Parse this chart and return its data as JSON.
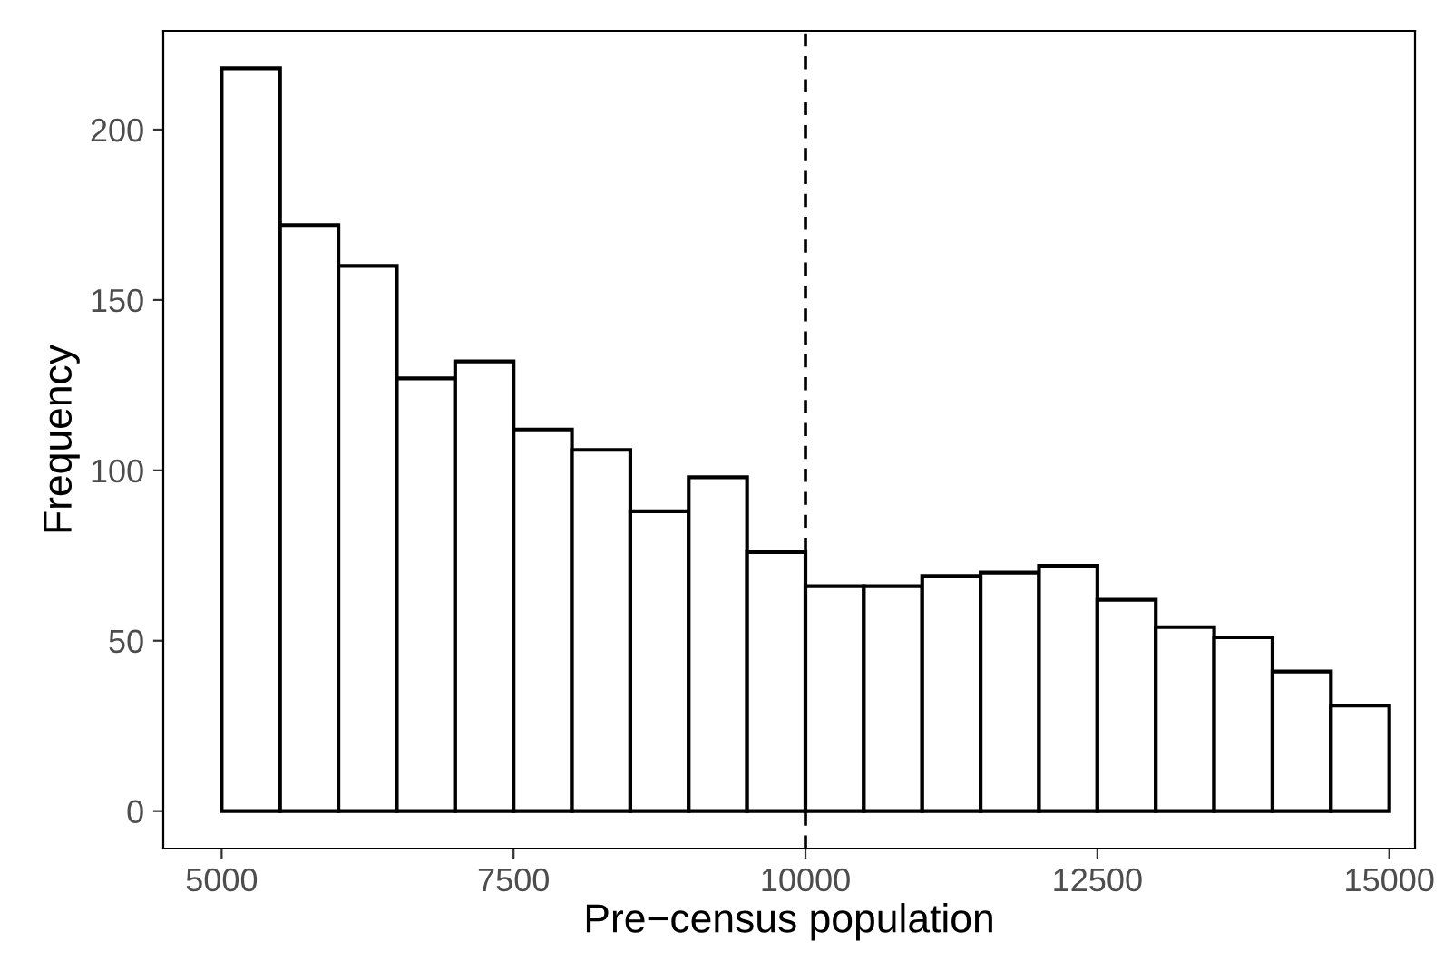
{
  "chart_data": {
    "type": "histogram",
    "xlabel": "Pre−census population",
    "ylabel": "Frequency",
    "bins": [
      5000,
      5500,
      6000,
      6500,
      7000,
      7500,
      8000,
      8500,
      9000,
      9500,
      10000,
      10500,
      11000,
      11500,
      12000,
      12500,
      13000,
      13500,
      14000,
      14500,
      15000
    ],
    "values": [
      218,
      172,
      160,
      127,
      132,
      112,
      106,
      88,
      98,
      76,
      66,
      66,
      69,
      70,
      72,
      62,
      54,
      51,
      41,
      31
    ],
    "color": "#ffffff",
    "xlim": [
      4500,
      15220
    ],
    "xticks": [
      5000,
      7500,
      10000,
      12500,
      15000
    ],
    "ylim": [
      -11,
      229
    ],
    "yticks": [
      0,
      50,
      100,
      150,
      200
    ],
    "ref_lines": [
      {
        "axis": "x",
        "value": 10000,
        "color": "#000000",
        "line_style": "dashed"
      }
    ],
    "grid": false
  }
}
